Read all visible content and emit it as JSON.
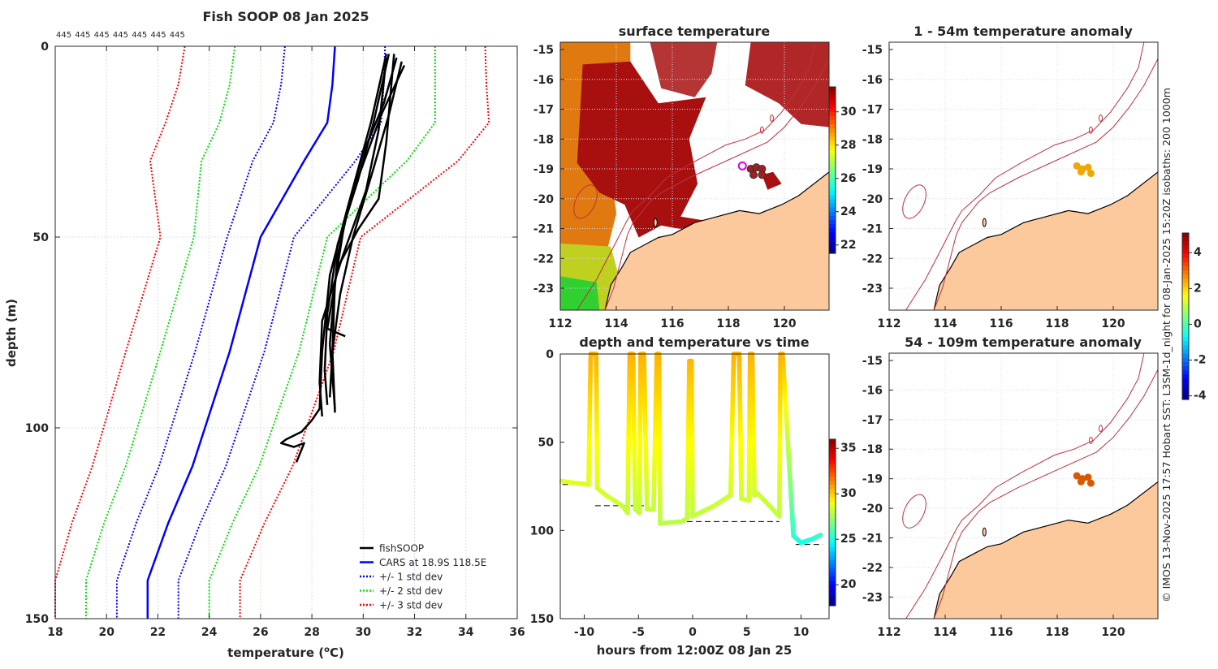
{
  "chart_data": [
    {
      "type": "line",
      "title": "Fish SOOP 08 Jan 2025",
      "xlabel": "temperature (",
      "xlabel_sup": "o",
      "xlabel_unit": "C)",
      "ylabel": "depth (m)",
      "xlim": [
        18,
        36
      ],
      "ylim": [
        0,
        150
      ],
      "y_reversed": true,
      "xticks": [
        "18",
        "20",
        "22",
        "24",
        "26",
        "28",
        "30",
        "32",
        "34",
        "36"
      ],
      "yticks": [
        "0",
        "50",
        "100",
        "150"
      ],
      "grid": true,
      "top_counts": [
        "445",
        "445",
        "445",
        "445",
        "445",
        "445",
        "445"
      ],
      "legend": {
        "placement": "bottom-right",
        "entries": [
          {
            "label": "fishSOOP",
            "color": "#000000",
            "style": "solid"
          },
          {
            "label": "CARS at 18.9S 118.5E",
            "color": "#0000ff",
            "style": "solid"
          },
          {
            "label": "+/- 1 std dev",
            "color": "#0000ff",
            "style": "dotted"
          },
          {
            "label": "+/- 2 std dev",
            "color": "#00ee00",
            "style": "dotted"
          },
          {
            "label": "+/- 3 std dev",
            "color": "#ff0000",
            "style": "dotted"
          }
        ]
      },
      "cars": {
        "depth": [
          0,
          10,
          20,
          30,
          50,
          80,
          110,
          125,
          140,
          150
        ],
        "mean": [
          28.9,
          28.8,
          28.6,
          27.7,
          26.0,
          24.8,
          23.35,
          22.4,
          21.6,
          21.6
        ],
        "std": [
          1.95,
          2.0,
          2.1,
          2.0,
          1.3,
          1.35,
          1.3,
          1.25,
          1.2,
          1.2
        ]
      },
      "fishsoop_profiles": [
        [
          [
            31.3,
            3
          ],
          [
            30.8,
            15
          ],
          [
            30.0,
            28
          ],
          [
            29.3,
            45
          ],
          [
            28.9,
            62
          ],
          [
            28.8,
            80
          ],
          [
            28.9,
            96
          ]
        ],
        [
          [
            31.0,
            2
          ],
          [
            30.4,
            20
          ],
          [
            29.8,
            35
          ],
          [
            29.0,
            52
          ],
          [
            28.6,
            70
          ],
          [
            28.5,
            85
          ],
          [
            28.6,
            94
          ]
        ],
        [
          [
            31.5,
            4
          ],
          [
            31.0,
            18
          ],
          [
            30.4,
            32
          ],
          [
            29.6,
            50
          ],
          [
            29.1,
            65
          ],
          [
            28.8,
            80
          ],
          [
            28.7,
            92
          ]
        ],
        [
          [
            30.9,
            3
          ],
          [
            30.6,
            22
          ],
          [
            30.1,
            38
          ],
          [
            29.2,
            55
          ],
          [
            28.4,
            72
          ],
          [
            28.3,
            88
          ],
          [
            28.4,
            97
          ]
        ],
        [
          [
            31.2,
            2
          ],
          [
            30.9,
            25
          ],
          [
            30.6,
            40
          ],
          [
            29.8,
            48
          ],
          [
            29.0,
            58
          ],
          [
            28.6,
            74
          ],
          [
            29.3,
            76
          ]
        ],
        [
          [
            31.6,
            5
          ],
          [
            30.7,
            18
          ],
          [
            29.5,
            40
          ],
          [
            29.0,
            55
          ],
          [
            28.7,
            78
          ],
          [
            28.9,
            95
          ]
        ],
        [
          [
            30.9,
            2
          ],
          [
            30.3,
            20
          ],
          [
            29.4,
            42
          ],
          [
            28.7,
            60
          ],
          [
            28.4,
            80
          ],
          [
            28.3,
            95
          ],
          [
            28.0,
            98
          ],
          [
            27.6,
            101
          ],
          [
            27.0,
            103
          ],
          [
            26.8,
            104
          ],
          [
            27.3,
            105
          ],
          [
            27.7,
            104
          ],
          [
            27.4,
            109
          ]
        ]
      ]
    },
    {
      "type": "heatmap",
      "title": "surface temperature",
      "xlim": [
        112,
        121.6
      ],
      "ylim": [
        -23.7,
        -14.75
      ],
      "xticks": [
        "112",
        "114",
        "116",
        "118",
        "120"
      ],
      "yticks": [
        "-15",
        "-16",
        "-17",
        "-18",
        "-19",
        "-20",
        "-21",
        "-22",
        "-23"
      ],
      "colorbar": {
        "range": [
          21.5,
          31.5
        ],
        "ticks": [
          "22",
          "24",
          "26",
          "28",
          "30"
        ]
      },
      "markers": [
        [
          118.8,
          -19.0
        ],
        [
          119.0,
          -18.95
        ],
        [
          119.2,
          -19.0
        ],
        [
          118.9,
          -19.2
        ],
        [
          119.2,
          -19.2
        ]
      ],
      "marker_highlight": [
        118.5,
        -18.9
      ]
    },
    {
      "type": "line",
      "title": "depth and temperature vs time",
      "xlabel": "hours from 12:00Z 08 Jan 25",
      "xlim": [
        -12.2,
        12.6
      ],
      "ylim": [
        0,
        150
      ],
      "y_reversed": true,
      "xticks": [
        "-10",
        "-5",
        "0",
        "5",
        "10"
      ],
      "yticks": [
        "0",
        "50",
        "100",
        "150"
      ],
      "colorbar": {
        "range": [
          17.7,
          36
        ],
        "ticks": [
          "20",
          "25",
          "30",
          "35"
        ]
      },
      "series": [
        [
          -12.1,
          72,
          28.6
        ],
        [
          -11,
          73,
          28.6
        ],
        [
          -9.6,
          74,
          28.5
        ],
        [
          -9.4,
          0,
          30.5
        ],
        [
          -9.2,
          0,
          30.5
        ],
        [
          -8.9,
          0,
          30.5
        ],
        [
          -8.8,
          76,
          28.5
        ],
        [
          -8,
          80,
          28.4
        ],
        [
          -6.5,
          86,
          28.2
        ],
        [
          -6,
          90,
          28.0
        ],
        [
          -5.8,
          0,
          30.5
        ],
        [
          -5.5,
          0,
          30.5
        ],
        [
          -5.3,
          88,
          28.1
        ],
        [
          -4.9,
          90,
          28.0
        ],
        [
          -4.8,
          0,
          30.5
        ],
        [
          -4.5,
          0,
          30.5
        ],
        [
          -4.2,
          88,
          28.1
        ],
        [
          -3.6,
          88,
          28.1
        ],
        [
          -3.3,
          0,
          30.5
        ],
        [
          -3.1,
          0,
          30.5
        ],
        [
          -3,
          96,
          27.9
        ],
        [
          -1,
          95,
          27.9
        ],
        [
          -0.5,
          93,
          28.0
        ],
        [
          -0.3,
          4,
          30.4
        ],
        [
          -0.1,
          4,
          30.4
        ],
        [
          0,
          92,
          28.0
        ],
        [
          2,
          86,
          28.2
        ],
        [
          3.5,
          80,
          28.3
        ],
        [
          3.8,
          0,
          30.5
        ],
        [
          4.3,
          0,
          30.5
        ],
        [
          4.5,
          82,
          28.3
        ],
        [
          5.2,
          83,
          28.3
        ],
        [
          5.3,
          0,
          30.5
        ],
        [
          5.5,
          0,
          30.5
        ],
        [
          5.7,
          80,
          28.3
        ],
        [
          6,
          79,
          28.3
        ],
        [
          8,
          92,
          28.0
        ],
        [
          8.1,
          0,
          30.5
        ],
        [
          8.3,
          0,
          30.5
        ],
        [
          9.3,
          103,
          25.5
        ],
        [
          10,
          107,
          25.0
        ],
        [
          11,
          105,
          25.2
        ],
        [
          12,
          102,
          25.8
        ]
      ],
      "reference_depths": [
        [
          -12,
          -10,
          74
        ],
        [
          -9,
          -4.5,
          86
        ],
        [
          -3,
          8,
          95
        ],
        [
          9.5,
          12,
          108
        ]
      ]
    },
    {
      "type": "heatmap",
      "title": "1 - 54m temperature anomaly",
      "xticks": [
        "112",
        "114",
        "116",
        "118",
        "120"
      ],
      "yticks": [
        "-15",
        "-16",
        "-17",
        "-18",
        "-19",
        "-20",
        "-21",
        "-22",
        "-23"
      ],
      "markers": [
        [
          118.7,
          -18.9
        ],
        [
          118.9,
          -19.0
        ],
        [
          119.1,
          -18.95
        ],
        [
          119.2,
          -19.15
        ],
        [
          118.85,
          -19.1
        ]
      ],
      "marker_color": "#f0a800"
    },
    {
      "type": "heatmap",
      "title": "54 - 109m temperature anomaly",
      "xticks": [
        "112",
        "114",
        "116",
        "118",
        "120"
      ],
      "yticks": [
        "-15",
        "-16",
        "-17",
        "-18",
        "-19",
        "-20",
        "-21",
        "-22",
        "-23"
      ],
      "markers": [
        [
          118.7,
          -18.9
        ],
        [
          118.9,
          -19.0
        ],
        [
          119.1,
          -18.95
        ],
        [
          119.2,
          -19.15
        ],
        [
          118.85,
          -19.1
        ]
      ],
      "marker_color": "#d85a00",
      "colorbar": {
        "range": [
          -4.2,
          5.1
        ],
        "ticks": [
          "4",
          "2",
          "0",
          "-2",
          "-4"
        ]
      }
    }
  ],
  "credit": "© IMOS 13-Nov-2025 17:57 Hobart SST: L3SM-1d_night for 08-Jan-2025 15:20Z isobaths: 200  1000m",
  "colors": {
    "land": "#fbc99b",
    "coast": "#000000",
    "isobath": "#c0303a",
    "cars": "#0000ff"
  }
}
